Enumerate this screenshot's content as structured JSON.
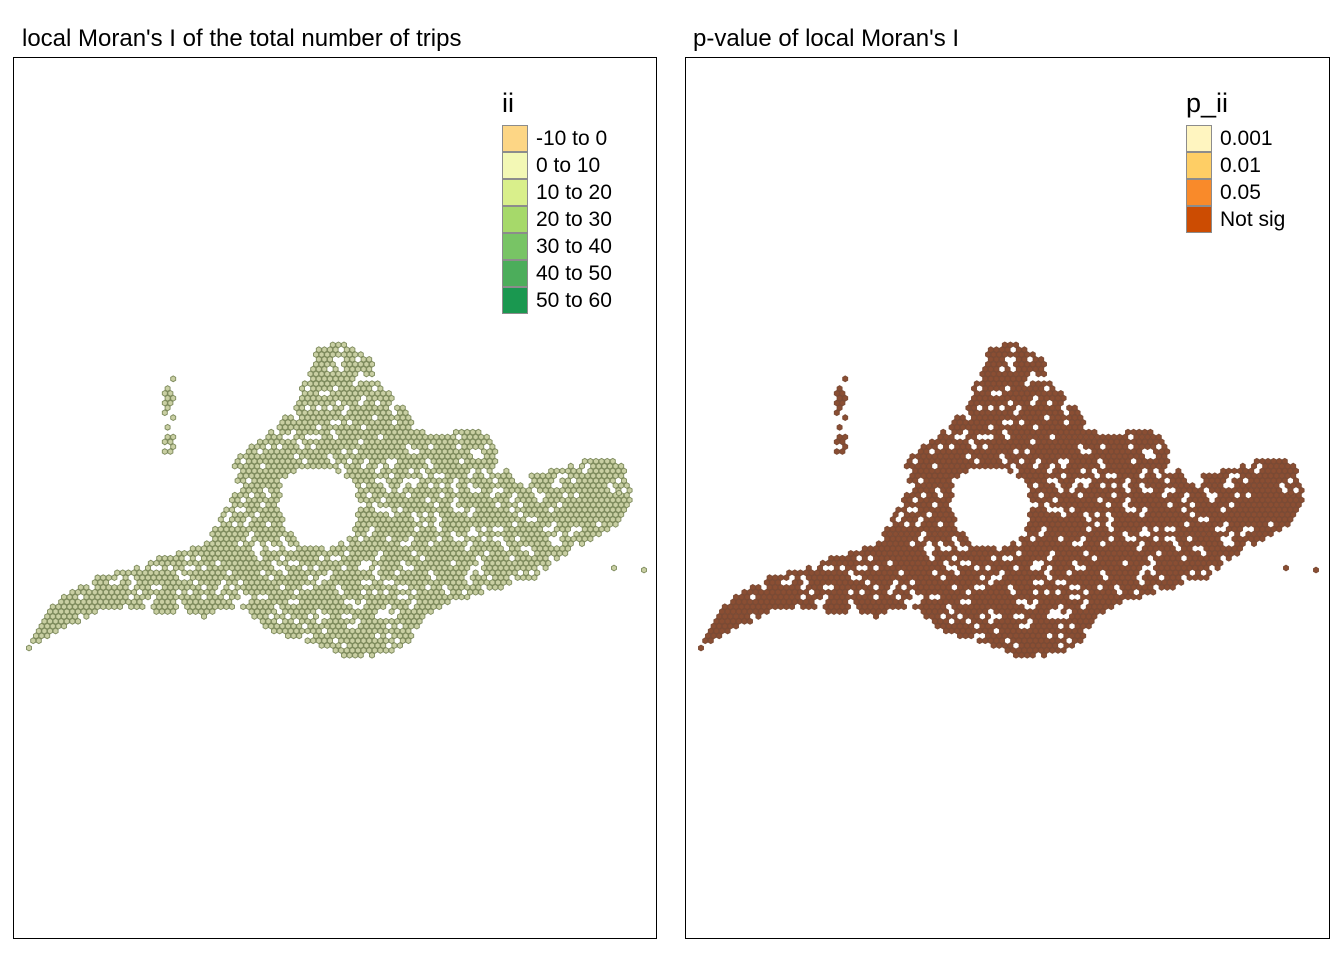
{
  "panels": [
    {
      "title": "local Moran's I of the total number of trips",
      "legend": {
        "title": "ii",
        "items": [
          {
            "label": "-10 to 0",
            "color": "#fdd685"
          },
          {
            "label": "0 to 10",
            "color": "#f3f8b5"
          },
          {
            "label": "10 to 20",
            "color": "#d9ef8b"
          },
          {
            "label": "20 to 30",
            "color": "#a6d96a"
          },
          {
            "label": "30 to 40",
            "color": "#78c465"
          },
          {
            "label": "40 to 50",
            "color": "#4cad5b"
          },
          {
            "label": "50 to 60",
            "color": "#1a9850"
          }
        ]
      },
      "hex_fill": "#c9cfa3",
      "hex_stroke": "#7d8a5c"
    },
    {
      "title": "p-value of local Moran's I",
      "legend": {
        "title": "p_ii",
        "items": [
          {
            "label": "0.001",
            "color": "#fff5c0"
          },
          {
            "label": "0.01",
            "color": "#fece65"
          },
          {
            "label": "0.05",
            "color": "#f98a2a"
          },
          {
            "label": "Not sig",
            "color": "#cc4c02"
          }
        ]
      },
      "hex_fill": "#8a4e33",
      "hex_stroke": "#7a4a34"
    }
  ]
}
